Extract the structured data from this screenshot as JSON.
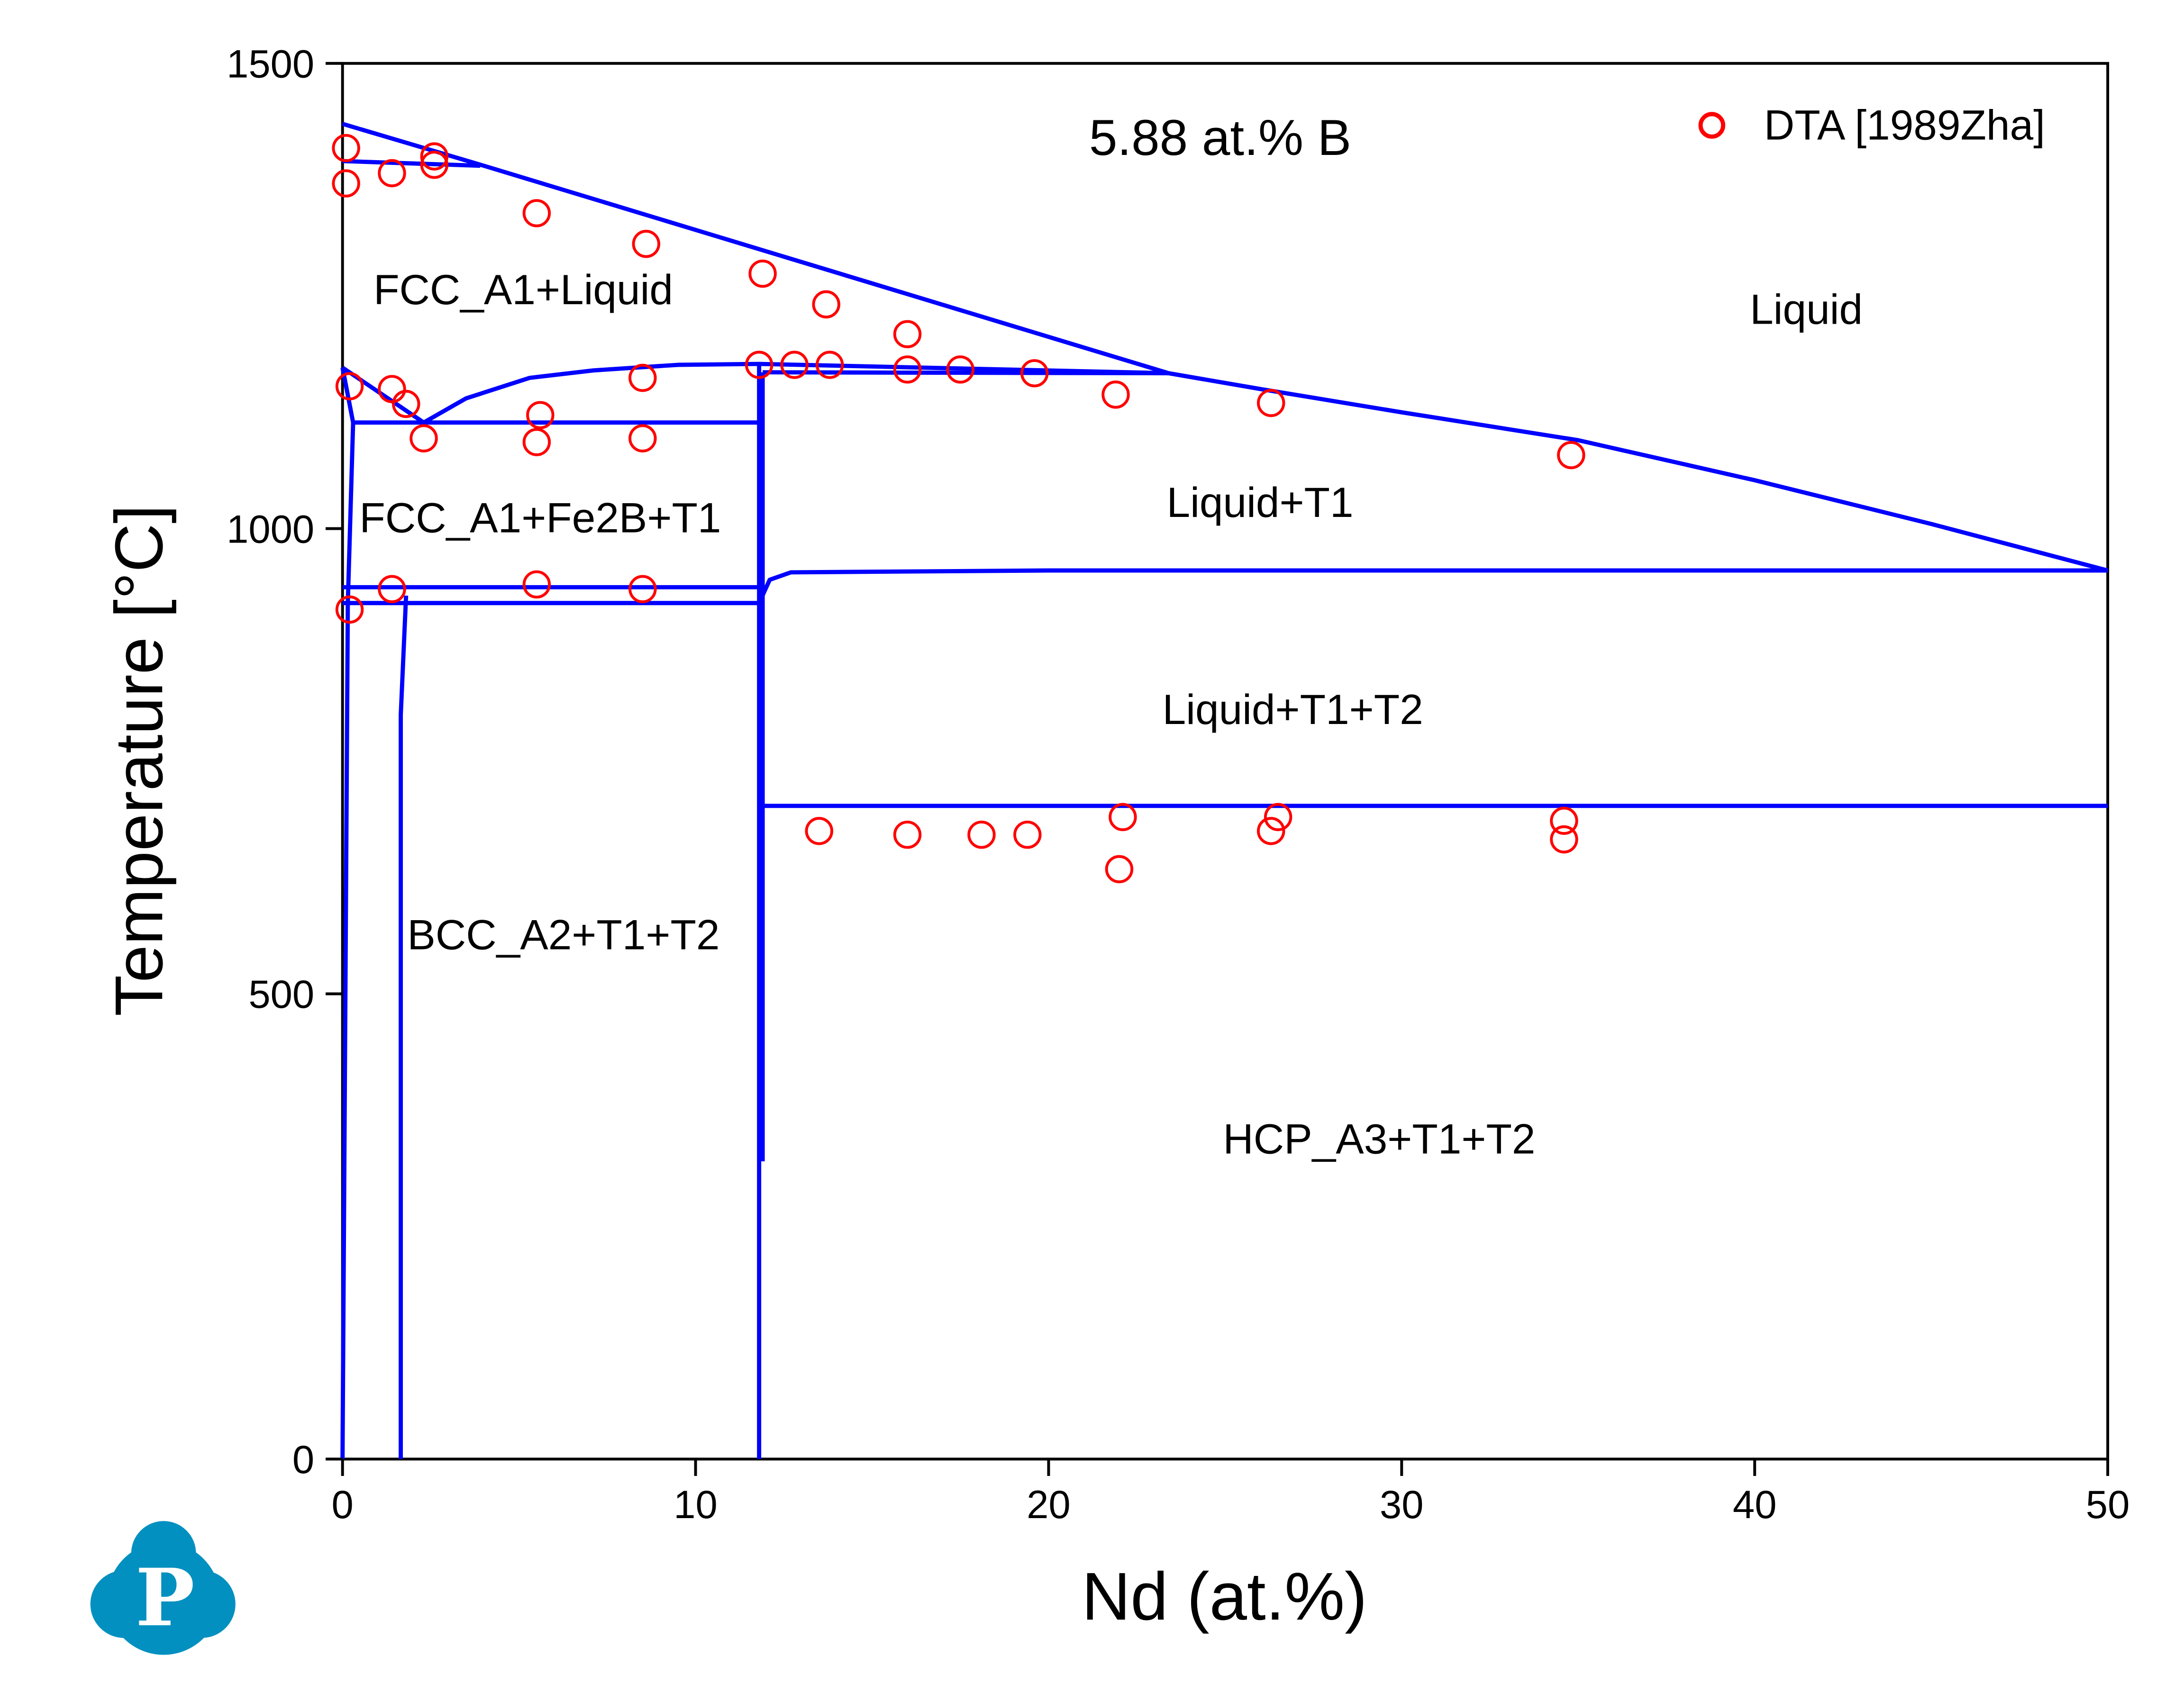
{
  "chart_data": {
    "type": "line",
    "title": "5.88 at.% B",
    "xlabel": "Nd (at.%)",
    "ylabel": "Temperature [°C]",
    "xlim": [
      0,
      50
    ],
    "ylim": [
      0,
      1500
    ],
    "xticks": [
      0,
      10,
      20,
      30,
      40,
      50
    ],
    "yticks": [
      0,
      500,
      1000,
      1500
    ],
    "grid": false,
    "legend_position": "top-right",
    "line_color": "#0000ff",
    "marker_color": "#ff0000",
    "phase_regions": [
      "FCC_A1+Liquid",
      "Liquid",
      "FCC_A1+Fe2B+T1",
      "Liquid+T1",
      "Liquid+T1+T2",
      "BCC_A2+T1+T2",
      "HCP_A3+T1+T2"
    ],
    "boundaries": [
      [
        [
          0,
          1435
        ],
        [
          4,
          1390
        ],
        [
          23.4,
          1167
        ],
        [
          26,
          1150
        ],
        [
          30,
          1125
        ],
        [
          35,
          1095
        ],
        [
          40,
          1052
        ],
        [
          45,
          1005
        ],
        [
          50,
          955
        ]
      ],
      [
        [
          0,
          1395
        ],
        [
          3.9,
          1390
        ]
      ],
      [
        [
          0,
          1173
        ],
        [
          2.3,
          1114
        ],
        [
          3.5,
          1140
        ],
        [
          5.3,
          1162
        ],
        [
          7.1,
          1170
        ],
        [
          9.5,
          1176
        ],
        [
          11.8,
          1177
        ],
        [
          23.4,
          1167
        ]
      ],
      [
        [
          11.9,
          1168
        ],
        [
          23.4,
          1167
        ]
      ],
      [
        [
          0,
          1173
        ],
        [
          0.3,
          1114
        ],
        [
          0.15,
          920
        ],
        [
          0,
          0
        ]
      ],
      [
        [
          0.3,
          1114
        ],
        [
          11.8,
          1114
        ]
      ],
      [
        [
          0,
          937
        ],
        [
          11.8,
          937
        ]
      ],
      [
        [
          0,
          920
        ],
        [
          11.8,
          920
        ]
      ],
      [
        [
          1.8,
          928
        ],
        [
          1.65,
          800
        ],
        [
          1.65,
          0
        ]
      ],
      [
        [
          11.8,
          1177
        ],
        [
          11.8,
          0
        ]
      ],
      [
        [
          11.9,
          1168
        ],
        [
          11.9,
          320
        ]
      ],
      [
        [
          11.8,
          920
        ],
        [
          12.1,
          945
        ],
        [
          12.7,
          953
        ],
        [
          20,
          955
        ],
        [
          50,
          955
        ]
      ],
      [
        [
          11.8,
          702
        ],
        [
          50,
          702
        ]
      ]
    ],
    "series": [
      {
        "name": "DTA [1989Zha]",
        "marker": "open-circle",
        "points": [
          [
            0.1,
            1409
          ],
          [
            0.1,
            1371
          ],
          [
            1.4,
            1382
          ],
          [
            2.6,
            1400
          ],
          [
            2.6,
            1391
          ],
          [
            5.5,
            1339
          ],
          [
            8.6,
            1306
          ],
          [
            11.9,
            1274
          ],
          [
            13.7,
            1241
          ],
          [
            16.0,
            1209
          ],
          [
            11.8,
            1176
          ],
          [
            12.8,
            1176
          ],
          [
            13.8,
            1176
          ],
          [
            16.0,
            1171
          ],
          [
            17.5,
            1171
          ],
          [
            19.6,
            1167
          ],
          [
            21.9,
            1144
          ],
          [
            26.3,
            1135
          ],
          [
            34.8,
            1079
          ],
          [
            0.2,
            1153
          ],
          [
            1.4,
            1150
          ],
          [
            1.8,
            1134
          ],
          [
            2.3,
            1097
          ],
          [
            5.6,
            1122
          ],
          [
            5.5,
            1093
          ],
          [
            8.5,
            1162
          ],
          [
            8.5,
            1097
          ],
          [
            0.2,
            913
          ],
          [
            1.4,
            935
          ],
          [
            5.5,
            940
          ],
          [
            8.5,
            935
          ],
          [
            13.5,
            675
          ],
          [
            16.0,
            671
          ],
          [
            18.1,
            671
          ],
          [
            19.4,
            671
          ],
          [
            22.1,
            690
          ],
          [
            22.0,
            634
          ],
          [
            26.3,
            675
          ],
          [
            26.5,
            690
          ],
          [
            34.6,
            686
          ],
          [
            34.6,
            666
          ]
        ]
      }
    ]
  },
  "logo": {
    "letter": "P",
    "color": "#0290c0"
  }
}
